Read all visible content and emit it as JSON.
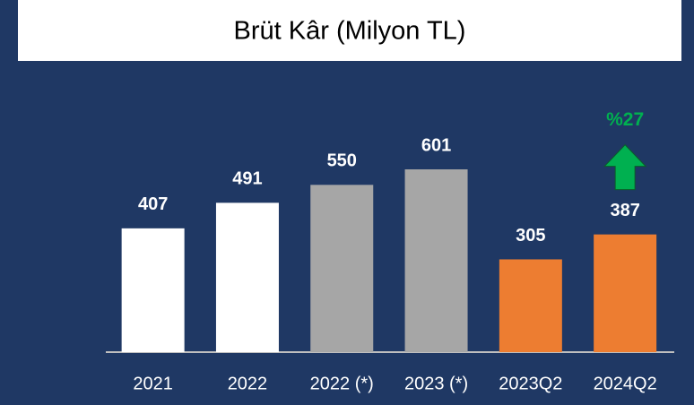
{
  "chart_data": {
    "type": "bar",
    "title": "Brüt Kâr (Milyon TL)",
    "categories": [
      "2021",
      "2022",
      "2022 (*)",
      "2023 (*)",
      "2023Q2",
      "2024Q2"
    ],
    "values": [
      407,
      491,
      550,
      601,
      305,
      387
    ],
    "colors": [
      "#ffffff",
      "#ffffff",
      "#a6a6a6",
      "#a6a6a6",
      "#ed7d31",
      "#ed7d31"
    ],
    "annotation": {
      "text": "%27",
      "color": "#00b050"
    }
  }
}
